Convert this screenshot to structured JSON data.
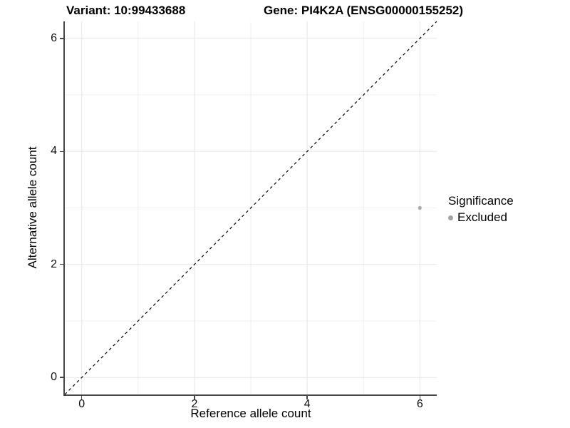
{
  "title": {
    "left": "Variant: 10:99433688",
    "right": "Gene: PI4K2A (ENSG00000155252)"
  },
  "chart_data": {
    "type": "scatter",
    "xlabel": "Reference allele count",
    "ylabel": "Alternative allele count",
    "xlim": [
      -0.3,
      6.3
    ],
    "ylim": [
      -0.3,
      6.3
    ],
    "x_major_ticks": [
      0,
      2,
      4,
      6
    ],
    "y_major_ticks": [
      0,
      2,
      4,
      6
    ],
    "x_minor_ticks": [
      1,
      3,
      5
    ],
    "y_minor_ticks": [
      1,
      3,
      5
    ],
    "grid": "major+minor",
    "identity_line": {
      "style": "dashed",
      "color": "#000000",
      "from": -0.3,
      "to": 6.3
    },
    "series": [
      {
        "name": "Excluded",
        "color": "#a9a9a9",
        "points": [
          [
            6,
            3
          ]
        ]
      }
    ],
    "legend": {
      "title": "Significance",
      "position": "right",
      "entries": [
        {
          "label": "Excluded",
          "color": "#a3a3a3"
        }
      ]
    }
  },
  "colors": {
    "background": "#ffffff",
    "major_grid": "#e6e6e6",
    "minor_grid": "#f0f0f0",
    "axis": "#464646",
    "point": "#a9a9a9",
    "dashed_line": "#000000"
  }
}
